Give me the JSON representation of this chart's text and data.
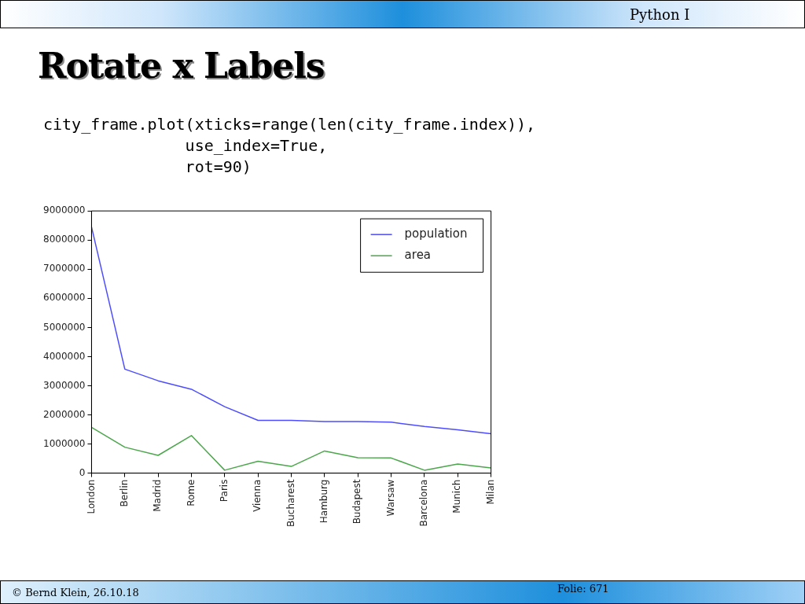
{
  "chart_data": {
    "type": "line",
    "title": "Rotate x Labels",
    "annotations": [
      "Python I",
      "city_frame.plot(xticks=range(len(city_frame.index)),\n               use_index=True,\n               rot=90)",
      "© Bernd Klein, 26.10.18",
      "Folie: 671"
    ],
    "categories": [
      "London",
      "Berlin",
      "Madrid",
      "Rome",
      "Paris",
      "Vienna",
      "Bucharest",
      "Hamburg",
      "Budapest",
      "Warsaw",
      "Barcelona",
      "Munich",
      "Milan"
    ],
    "series": [
      {
        "name": "population",
        "color": "#4d4dff",
        "values": [
          8450000,
          3570000,
          3170000,
          2880000,
          2280000,
          1810000,
          1810000,
          1770000,
          1770000,
          1750000,
          1600000,
          1490000,
          1350000
        ]
      },
      {
        "name": "area",
        "color": "#4ca64c",
        "values": [
          1570000,
          890000,
          610000,
          1290000,
          100000,
          410000,
          230000,
          760000,
          530000,
          520000,
          100000,
          310000,
          180000
        ]
      }
    ],
    "ylim": [
      0,
      9000000
    ],
    "yticks": [
      0,
      1000000,
      2000000,
      3000000,
      4000000,
      5000000,
      6000000,
      7000000,
      8000000,
      9000000
    ],
    "grid": false,
    "legend": "top right",
    "marker": "none",
    "line_style": "solid"
  }
}
